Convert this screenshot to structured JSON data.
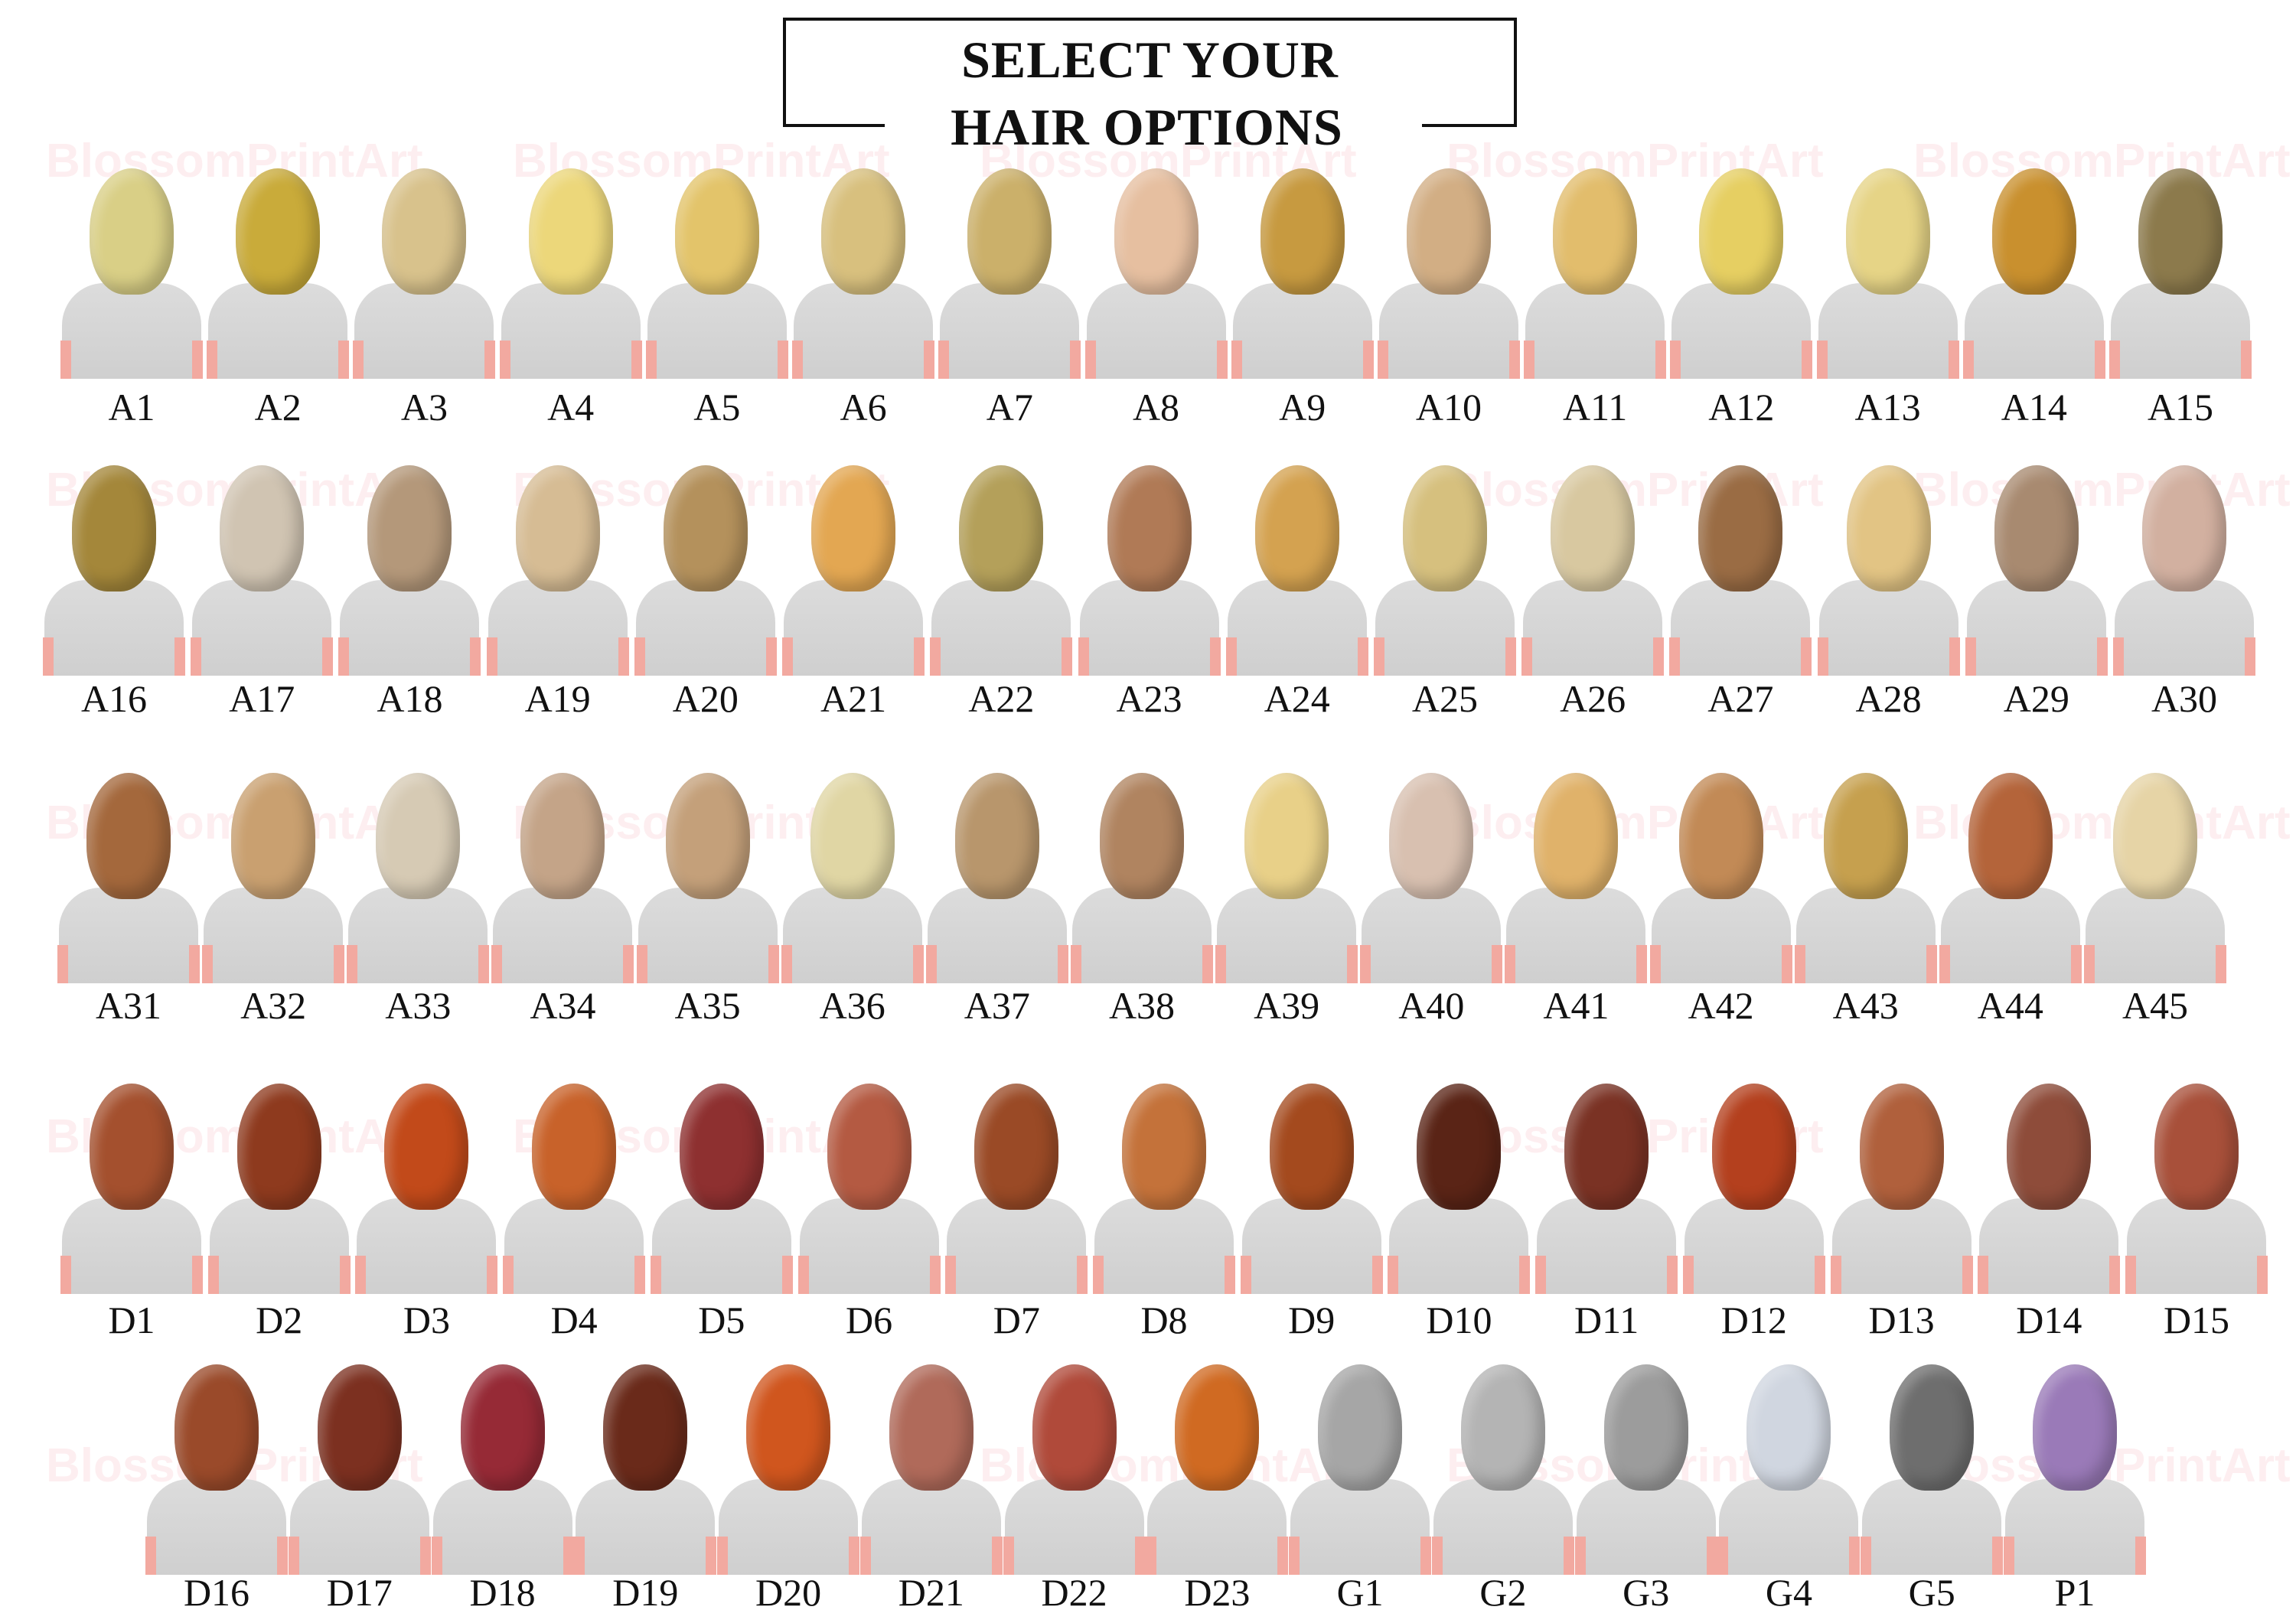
{
  "title": {
    "line1": "SELECT YOUR",
    "line2": "HAIR OPTIONS"
  },
  "watermark": "BlossomPrintArt",
  "rows": [
    [
      {
        "id": "A1",
        "color": "#d9cf86"
      },
      {
        "id": "A2",
        "color": "#c9ab3a"
      },
      {
        "id": "A3",
        "color": "#d8c28c"
      },
      {
        "id": "A4",
        "color": "#ecd77a"
      },
      {
        "id": "A5",
        "color": "#e3c46a"
      },
      {
        "id": "A6",
        "color": "#d8c07e"
      },
      {
        "id": "A7",
        "color": "#cbb06a"
      },
      {
        "id": "A8",
        "color": "#e6bfa0"
      },
      {
        "id": "A9",
        "color": "#c79a40"
      },
      {
        "id": "A10",
        "color": "#d2ae84"
      },
      {
        "id": "A11",
        "color": "#e2bd6c"
      },
      {
        "id": "A12",
        "color": "#e6cf62"
      },
      {
        "id": "A13",
        "color": "#e6d486"
      },
      {
        "id": "A14",
        "color": "#c9902e"
      },
      {
        "id": "A15",
        "color": "#8c7a4c"
      }
    ],
    [
      {
        "id": "A16",
        "color": "#a4873a"
      },
      {
        "id": "A17",
        "color": "#d0c4b2"
      },
      {
        "id": "A18",
        "color": "#b4987a"
      },
      {
        "id": "A19",
        "color": "#d6bc94"
      },
      {
        "id": "A20",
        "color": "#b4915c"
      },
      {
        "id": "A21",
        "color": "#e3a752"
      },
      {
        "id": "A22",
        "color": "#b4a05a"
      },
      {
        "id": "A23",
        "color": "#b07a56"
      },
      {
        "id": "A24",
        "color": "#d4a250"
      },
      {
        "id": "A25",
        "color": "#d6c07e"
      },
      {
        "id": "A26",
        "color": "#d8c8a0"
      },
      {
        "id": "A27",
        "color": "#9a6c44"
      },
      {
        "id": "A28",
        "color": "#e2c484"
      },
      {
        "id": "A29",
        "color": "#a88a70"
      },
      {
        "id": "A30",
        "color": "#d2b0a0"
      }
    ],
    [
      {
        "id": "A31",
        "color": "#a4683c"
      },
      {
        "id": "A32",
        "color": "#c9a070"
      },
      {
        "id": "A33",
        "color": "#d6cab4"
      },
      {
        "id": "A34",
        "color": "#c4a488"
      },
      {
        "id": "A35",
        "color": "#c4a07a"
      },
      {
        "id": "A36",
        "color": "#e0d6a4"
      },
      {
        "id": "A37",
        "color": "#b8966c"
      },
      {
        "id": "A38",
        "color": "#b08460"
      },
      {
        "id": "A39",
        "color": "#e8d088"
      },
      {
        "id": "A40",
        "color": "#d8c0b0"
      },
      {
        "id": "A41",
        "color": "#e0b26a"
      },
      {
        "id": "A42",
        "color": "#c28a56"
      },
      {
        "id": "A43",
        "color": "#c6a04e"
      },
      {
        "id": "A44",
        "color": "#b4643a"
      },
      {
        "id": "A45",
        "color": "#e6d4a6"
      }
    ],
    [
      {
        "id": "D1",
        "color": "#a4502e"
      },
      {
        "id": "D2",
        "color": "#8e3a1e"
      },
      {
        "id": "D3",
        "color": "#c24a1a"
      },
      {
        "id": "D4",
        "color": "#c8622a"
      },
      {
        "id": "D5",
        "color": "#8e3030"
      },
      {
        "id": "D6",
        "color": "#b45a42"
      },
      {
        "id": "D7",
        "color": "#9a4a26"
      },
      {
        "id": "D8",
        "color": "#c4723a"
      },
      {
        "id": "D9",
        "color": "#a44a1e"
      },
      {
        "id": "D10",
        "color": "#5a2416"
      },
      {
        "id": "D11",
        "color": "#7a3224"
      },
      {
        "id": "D12",
        "color": "#b4401e"
      },
      {
        "id": "D13",
        "color": "#b0603c"
      },
      {
        "id": "D14",
        "color": "#8e4c3a"
      },
      {
        "id": "D15",
        "color": "#a8503a"
      }
    ],
    [
      {
        "id": "D16",
        "color": "#9a4a2a"
      },
      {
        "id": "D17",
        "color": "#7c3020"
      },
      {
        "id": "D18",
        "color": "#962a36"
      },
      {
        "id": "D19",
        "color": "#6a2a1a"
      },
      {
        "id": "D20",
        "color": "#d0561e"
      },
      {
        "id": "D21",
        "color": "#b06a5a"
      },
      {
        "id": "D22",
        "color": "#b04a3a"
      },
      {
        "id": "D23",
        "color": "#d06a22"
      },
      {
        "id": "G1",
        "color": "#a6a6a6"
      },
      {
        "id": "G2",
        "color": "#b4b4b4"
      },
      {
        "id": "G3",
        "color": "#9c9c9c"
      },
      {
        "id": "G4",
        "color": "#d0d6e0"
      },
      {
        "id": "G5",
        "color": "#6e6e6e"
      },
      {
        "id": "P1",
        "color": "#9a7ab8"
      }
    ]
  ]
}
